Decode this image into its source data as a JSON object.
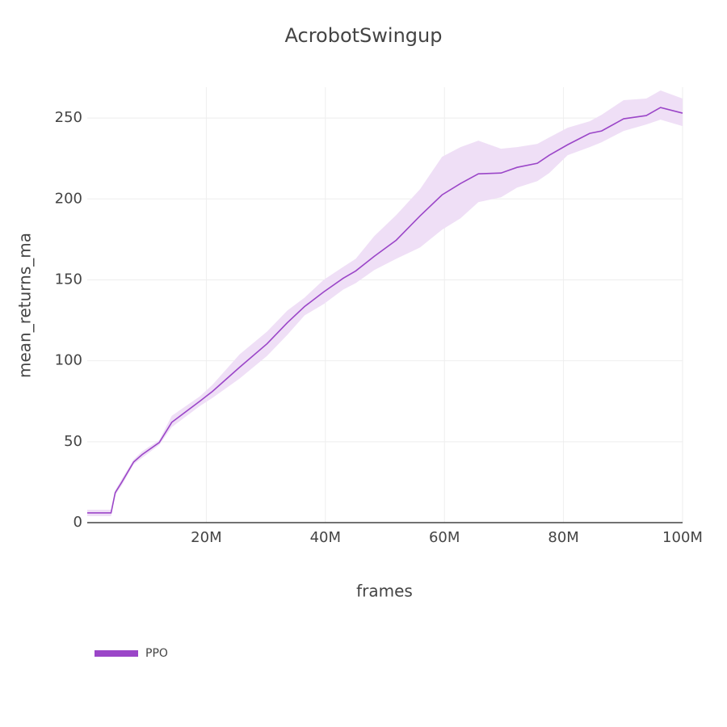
{
  "chart_data": {
    "type": "line",
    "title": "AcrobotSwingup",
    "x_label": "frames",
    "y_label": "mean_returns_ma",
    "xlim": [
      0,
      100000000
    ],
    "xticks": [
      {
        "value": 20000000,
        "label": "20M"
      },
      {
        "value": 40000000,
        "label": "40M"
      },
      {
        "value": 60000000,
        "label": "60M"
      },
      {
        "value": 80000000,
        "label": "80M"
      },
      {
        "value": 100000000,
        "label": "100M"
      }
    ],
    "ylim": [
      0,
      269
    ],
    "yticks": [
      0,
      50,
      100,
      150,
      200,
      250
    ],
    "grid": true,
    "legend": "bottom-left",
    "series": [
      {
        "name": "PPO",
        "color": "#9b46c8",
        "band_color": "#efdff6",
        "x": [
          0,
          2000000,
          4000000,
          4700000,
          5800000,
          7800000,
          9200000,
          12100000,
          14200000,
          18900000,
          21000000,
          25600000,
          30200000,
          33600000,
          36500000,
          39700000,
          43000000,
          45100000,
          48200000,
          51900000,
          55900000,
          59600000,
          62700000,
          65700000,
          69500000,
          72200000,
          75600000,
          77600000,
          80700000,
          84400000,
          86400000,
          90100000,
          93900000,
          96300000,
          100000000
        ],
        "values": [
          6,
          6,
          6,
          18.5,
          25,
          37.5,
          42,
          49.5,
          62,
          75,
          81,
          96,
          110.5,
          123.5,
          133.5,
          142.5,
          151,
          155.5,
          164.5,
          174.5,
          189.5,
          202.5,
          209.5,
          215.5,
          216,
          219.5,
          222,
          227,
          233.5,
          240.5,
          242,
          249.5,
          251.5,
          256.5,
          253
        ],
        "upper": [
          8,
          8,
          8,
          20,
          27,
          39,
          44,
          51,
          66,
          78,
          85,
          104,
          118,
          131,
          139,
          150,
          158,
          163,
          177,
          190,
          206,
          226,
          232,
          236,
          231,
          232,
          234,
          238,
          244,
          248,
          252,
          261,
          262,
          267,
          262
        ],
        "lower": [
          4,
          4,
          4,
          17,
          23,
          36,
          40,
          48,
          59,
          72,
          77,
          89,
          103,
          116,
          128,
          135,
          144,
          148,
          156,
          163,
          170,
          181,
          188,
          198,
          201,
          207,
          211,
          216,
          227,
          232,
          235,
          242,
          246,
          249,
          245
        ]
      }
    ]
  }
}
